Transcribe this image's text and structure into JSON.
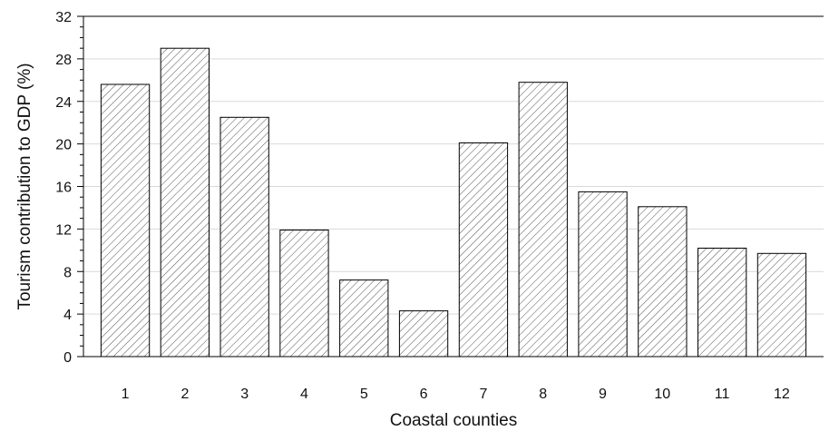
{
  "chart_data": {
    "type": "bar",
    "categories": [
      "1",
      "2",
      "3",
      "4",
      "5",
      "6",
      "7",
      "8",
      "9",
      "10",
      "11",
      "12"
    ],
    "values": [
      25.6,
      29.0,
      22.5,
      11.9,
      7.2,
      4.3,
      20.1,
      25.8,
      15.5,
      14.1,
      10.2,
      9.7
    ],
    "title": "",
    "xlabel": "Coastal counties",
    "ylabel": "Tourism contribution to GDP (%)",
    "ylim": [
      0,
      32
    ],
    "yticks": [
      "0",
      "4",
      "8",
      "12",
      "16",
      "20",
      "24",
      "28",
      "32"
    ],
    "grid": true,
    "legend": "none",
    "bar_fill": "hatched",
    "colors": {
      "bar_stroke": "#000000",
      "hatch": "#555555",
      "grid": "#d9d9d9",
      "axis": "#000000"
    }
  }
}
